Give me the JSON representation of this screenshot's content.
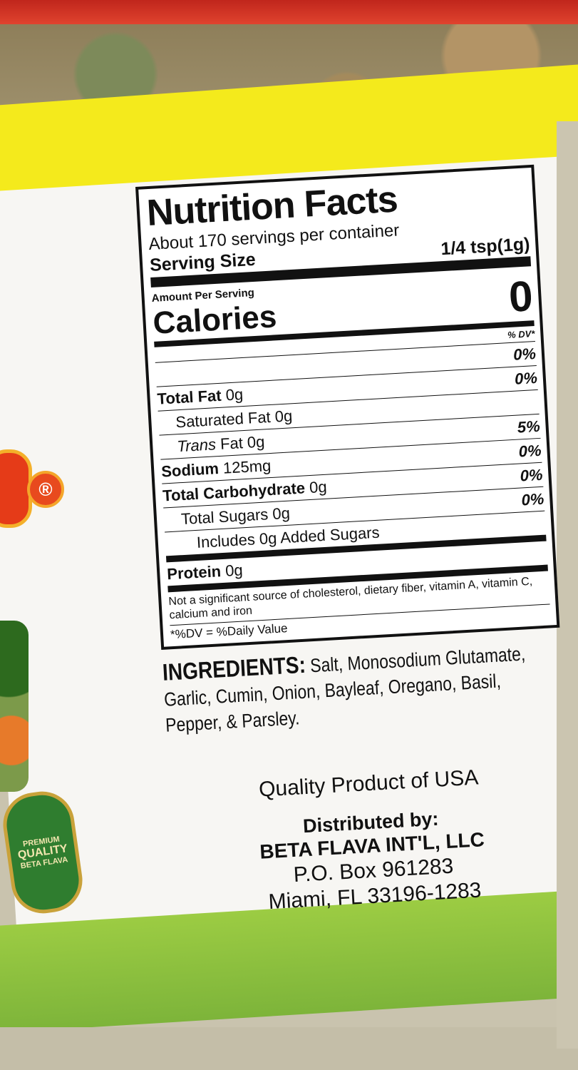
{
  "logo": {
    "registered_mark": "®",
    "badge_text": "PREMIUM QUALITY BETA FLAVA"
  },
  "nutrition": {
    "title": "Nutrition Facts",
    "servings": "About 170 servings per container",
    "serving_size_label": "Serving Size",
    "serving_size_value": "1/4 tsp(1g)",
    "amount_per_serving": "Amount Per Serving",
    "calories_label": "Calories",
    "calories_value": "0",
    "dv_header": "% DV*",
    "rows": [
      {
        "label": "",
        "amount": "",
        "dv": "0%",
        "bold": false,
        "indent": 0
      },
      {
        "label": "Total Fat",
        "amount": "0g",
        "dv": "0%",
        "bold": true,
        "indent": 0
      },
      {
        "label": "Saturated Fat",
        "amount": "0g",
        "dv": "",
        "bold": false,
        "indent": 1
      },
      {
        "label": "Trans",
        "label_suffix": " Fat",
        "amount": "0g",
        "dv": "5%",
        "bold": false,
        "indent": 1
      },
      {
        "label": "Sodium",
        "amount": "125mg",
        "dv": "0%",
        "bold": true,
        "indent": 0
      },
      {
        "label": "Total Carbohydrate",
        "amount": "0g",
        "dv": "0%",
        "bold": true,
        "indent": 0
      },
      {
        "label": "Total Sugars",
        "amount": "0g",
        "dv": "0%",
        "bold": false,
        "indent": 1
      },
      {
        "label": "Includes 0g Added Sugars",
        "amount": "",
        "dv": "",
        "bold": false,
        "indent": 2
      },
      {
        "label": "Protein",
        "amount": "0g",
        "dv": "",
        "bold": true,
        "indent": 0
      }
    ],
    "note": "Not a significant source of cholesterol, dietary fiber, vitamin A, vitamin C, calcium and iron",
    "footnote": "*%DV = %Daily Value"
  },
  "ingredients": {
    "label": "INGREDIENTS:",
    "text": "Salt, Monosodium Glutamate, Garlic, Cumin, Onion, Bayleaf, Oregano, Basil, Pepper, & Parsley."
  },
  "distribution": {
    "origin": "Quality Product of USA",
    "distributed_by": "Distributed by:",
    "company": "BETA FLAVA INT'L, LLC",
    "po_box": "P.O. Box 961283",
    "city": "Miami, FL 33196-1283"
  },
  "colors": {
    "lid": "#c0261c",
    "yellow_band": "#f4ea1c",
    "green_band": "#8cc13e",
    "label": "#f7f6f3"
  }
}
